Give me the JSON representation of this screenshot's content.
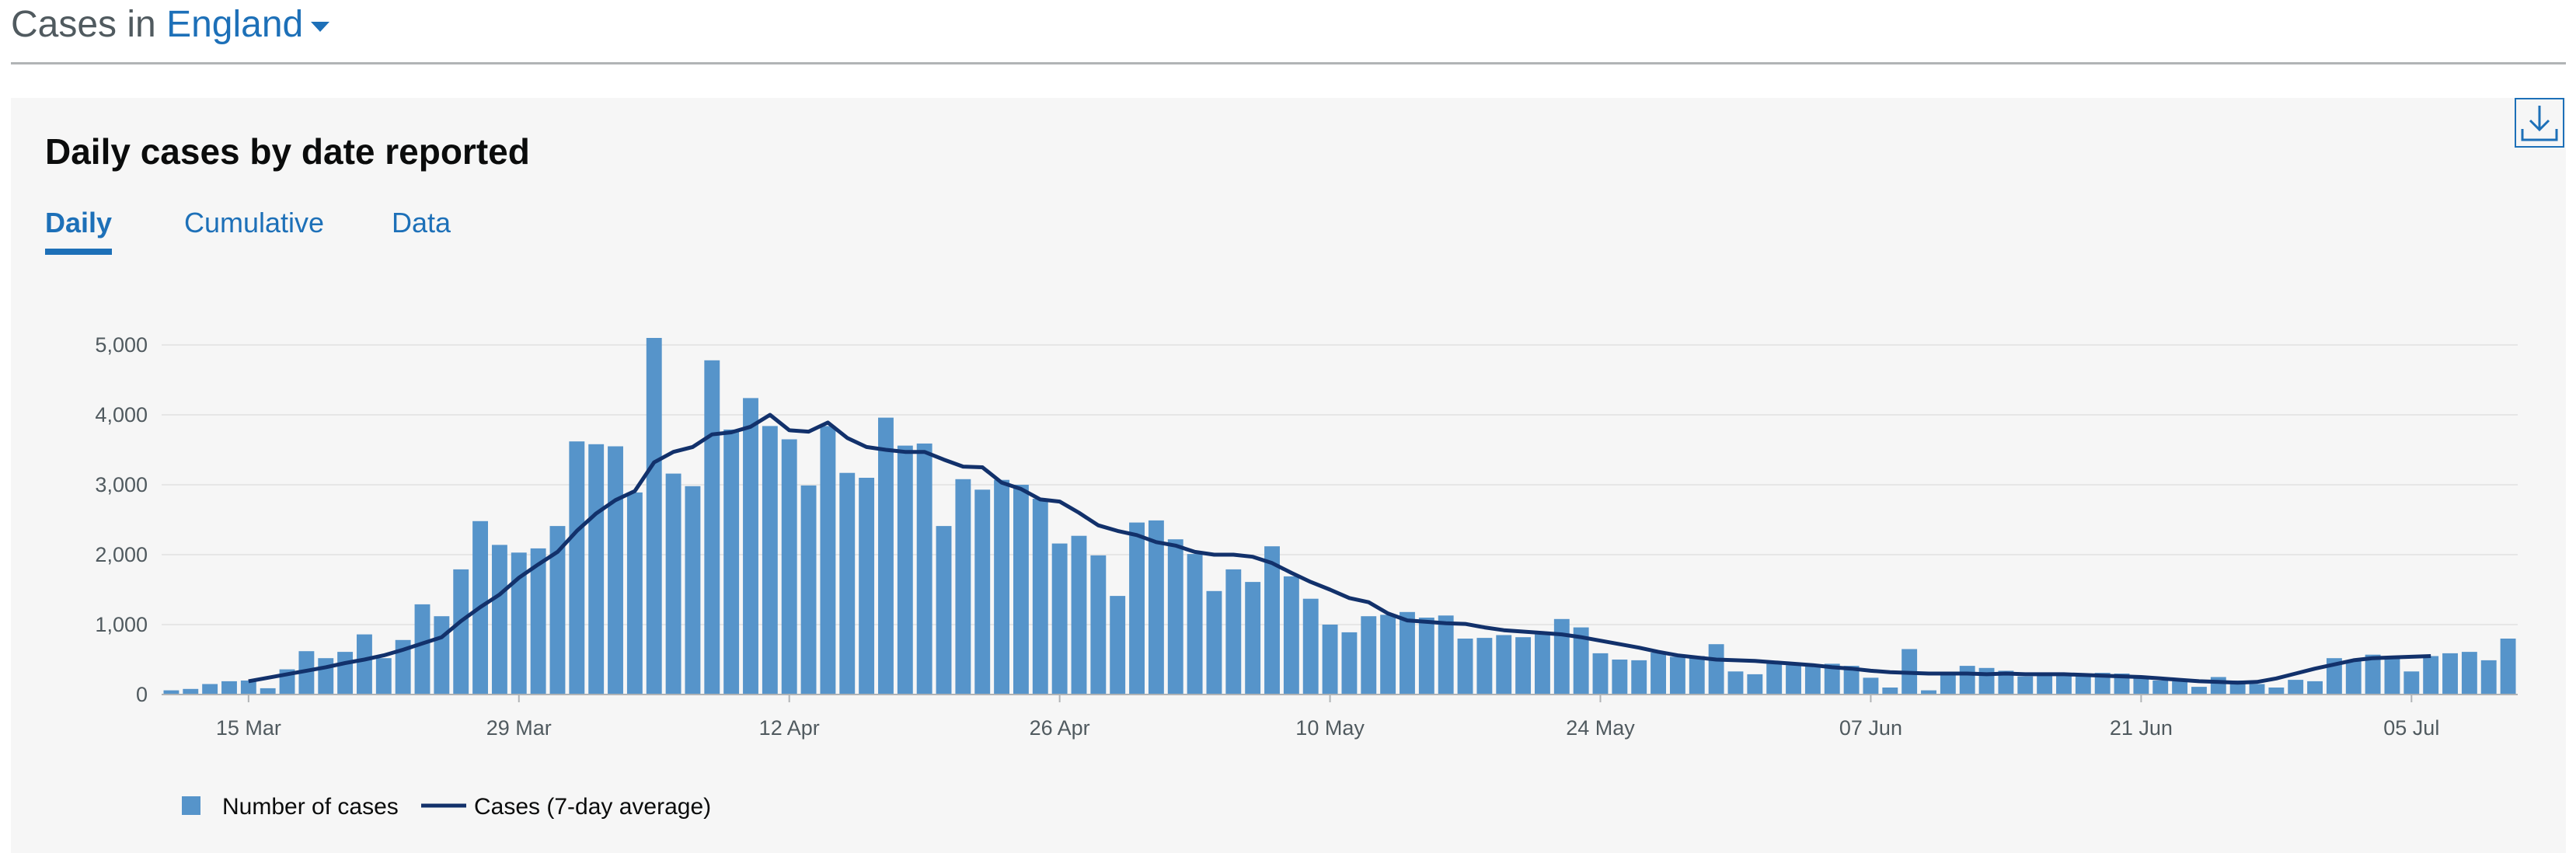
{
  "header": {
    "prefix": "Cases in",
    "area": "England"
  },
  "card": {
    "title": "Daily cases by date reported",
    "tabs": [
      {
        "label": "Daily",
        "active": true
      },
      {
        "label": "Cumulative",
        "active": false
      },
      {
        "label": "Data",
        "active": false
      }
    ],
    "download_icon": "download-icon"
  },
  "colors": {
    "bar": "#5694ca",
    "line": "#12316b",
    "link": "#1d70b8",
    "grid": "#e6e6e6"
  },
  "chart_data": {
    "type": "bar",
    "title": "",
    "xlabel": "",
    "ylabel": "",
    "ylim": [
      0,
      5000
    ],
    "yticks": [
      "0",
      "1,000",
      "2,000",
      "3,000",
      "4,000",
      "5,000"
    ],
    "xticks": [
      "15 Mar",
      "29 Mar",
      "12 Apr",
      "26 Apr",
      "10 May",
      "24 May",
      "07 Jun",
      "21 Jun",
      "05 Jul"
    ],
    "grid": true,
    "legend_position": "bottom-left",
    "categories_range": "11 Mar – 11 Jul",
    "series": [
      {
        "name": "Number of cases",
        "type": "bar",
        "values": [
          60,
          80,
          150,
          190,
          200,
          90,
          360,
          620,
          520,
          610,
          860,
          520,
          780,
          1290,
          1120,
          1790,
          2480,
          2140,
          2030,
          2090,
          2410,
          3620,
          3580,
          3550,
          2890,
          5100,
          3160,
          2980,
          4780,
          3790,
          4240,
          3840,
          3650,
          2990,
          3840,
          3170,
          3100,
          3960,
          3560,
          3590,
          2410,
          3080,
          2930,
          3070,
          3000,
          2800,
          2160,
          2270,
          1990,
          1410,
          2460,
          2490,
          2220,
          2010,
          1480,
          1790,
          1610,
          2120,
          1690,
          1370,
          1000,
          890,
          1120,
          1140,
          1180,
          1100,
          1130,
          800,
          810,
          850,
          820,
          860,
          1080,
          960,
          590,
          500,
          490,
          600,
          540,
          550,
          720,
          330,
          290,
          440,
          420,
          430,
          440,
          410,
          240,
          100,
          650,
          60,
          310,
          410,
          380,
          340,
          260,
          290,
          280,
          290,
          310,
          300,
          250,
          200,
          190,
          110,
          250,
          200,
          150,
          100,
          210,
          190,
          520,
          490,
          570,
          540,
          330,
          550,
          590,
          610,
          490,
          800
        ]
      },
      {
        "name": "Cases (7-day average)",
        "type": "line",
        "start_index": 4,
        "values": [
          190,
          240,
          290,
          340,
          390,
          450,
          500,
          560,
          640,
          730,
          820,
          1050,
          1250,
          1430,
          1670,
          1860,
          2040,
          2340,
          2590,
          2780,
          2910,
          3320,
          3470,
          3540,
          3720,
          3750,
          3830,
          4000,
          3780,
          3760,
          3890,
          3670,
          3540,
          3500,
          3470,
          3470,
          3360,
          3260,
          3250,
          3030,
          2940,
          2790,
          2760,
          2600,
          2420,
          2340,
          2280,
          2180,
          2130,
          2040,
          2000,
          2000,
          1970,
          1880,
          1740,
          1610,
          1500,
          1380,
          1320,
          1160,
          1060,
          1040,
          1020,
          1010,
          960,
          920,
          900,
          880,
          860,
          820,
          770,
          720,
          670,
          610,
          560,
          530,
          500,
          490,
          480,
          460,
          440,
          420,
          390,
          370,
          340,
          320,
          310,
          300,
          300,
          300,
          290,
          300,
          290,
          290,
          290,
          280,
          270,
          260,
          250,
          230,
          210,
          190,
          180,
          170,
          180,
          230,
          300,
          370,
          430,
          490,
          520,
          530,
          540,
          550
        ]
      }
    ]
  }
}
